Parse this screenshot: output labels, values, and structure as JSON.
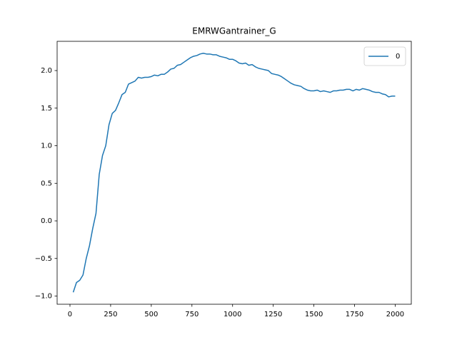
{
  "chart_data": {
    "type": "line",
    "title": "EMRWGantrainer_G",
    "x": [
      20,
      40,
      60,
      80,
      100,
      120,
      140,
      160,
      180,
      200,
      220,
      240,
      260,
      280,
      300,
      320,
      340,
      360,
      380,
      400,
      420,
      440,
      460,
      480,
      500,
      520,
      540,
      560,
      580,
      600,
      620,
      640,
      660,
      680,
      700,
      720,
      740,
      760,
      780,
      800,
      820,
      840,
      860,
      880,
      900,
      920,
      940,
      960,
      980,
      1000,
      1020,
      1040,
      1060,
      1080,
      1100,
      1120,
      1140,
      1160,
      1180,
      1200,
      1220,
      1240,
      1260,
      1280,
      1300,
      1320,
      1340,
      1360,
      1380,
      1400,
      1420,
      1440,
      1460,
      1480,
      1500,
      1520,
      1540,
      1560,
      1580,
      1600,
      1620,
      1640,
      1660,
      1680,
      1700,
      1720,
      1740,
      1760,
      1780,
      1800,
      1820,
      1840,
      1860,
      1880,
      1900,
      1920,
      1940,
      1960,
      1980,
      2000
    ],
    "series": [
      {
        "name": "0",
        "color": "#1f77b4",
        "values": [
          -0.95,
          -0.82,
          -0.79,
          -0.72,
          -0.5,
          -0.33,
          -0.1,
          0.1,
          0.62,
          0.87,
          1.0,
          1.28,
          1.43,
          1.47,
          1.57,
          1.68,
          1.71,
          1.82,
          1.84,
          1.86,
          1.91,
          1.9,
          1.91,
          1.91,
          1.92,
          1.94,
          1.93,
          1.95,
          1.95,
          1.98,
          2.02,
          2.03,
          2.07,
          2.08,
          2.11,
          2.14,
          2.17,
          2.19,
          2.2,
          2.22,
          2.23,
          2.22,
          2.22,
          2.21,
          2.21,
          2.19,
          2.18,
          2.17,
          2.15,
          2.15,
          2.13,
          2.1,
          2.09,
          2.1,
          2.07,
          2.08,
          2.05,
          2.03,
          2.02,
          2.01,
          2.0,
          1.96,
          1.95,
          1.94,
          1.92,
          1.89,
          1.86,
          1.83,
          1.81,
          1.8,
          1.79,
          1.76,
          1.74,
          1.73,
          1.73,
          1.74,
          1.72,
          1.73,
          1.72,
          1.71,
          1.73,
          1.73,
          1.74,
          1.74,
          1.75,
          1.75,
          1.73,
          1.75,
          1.74,
          1.76,
          1.75,
          1.74,
          1.72,
          1.71,
          1.71,
          1.69,
          1.68,
          1.65,
          1.66,
          1.66
        ]
      }
    ],
    "xlim": [
      -79,
      2099
    ],
    "ylim": [
      -1.109,
      2.389
    ],
    "xticks": [
      0,
      250,
      500,
      750,
      1000,
      1250,
      1500,
      1750,
      2000
    ],
    "yticks": [
      {
        "value": -1.0,
        "label": "−1.0"
      },
      {
        "value": -0.5,
        "label": "−0.5"
      },
      {
        "value": 0.0,
        "label": "0.0"
      },
      {
        "value": 0.5,
        "label": "0.5"
      },
      {
        "value": 1.0,
        "label": "1.0"
      },
      {
        "value": 1.5,
        "label": "1.5"
      },
      {
        "value": 2.0,
        "label": "2.0"
      }
    ],
    "legend": "upper right",
    "grid": false
  }
}
